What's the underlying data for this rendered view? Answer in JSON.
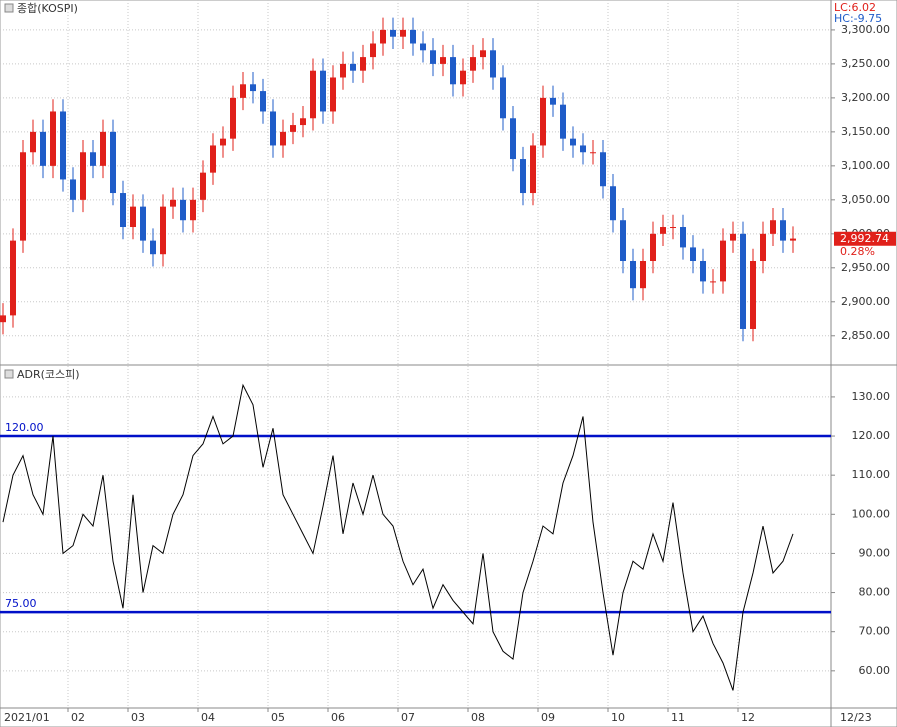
{
  "chart_data": [
    {
      "type": "candlestick",
      "title": "종합(KOSPI)",
      "lc_label": "LC:6.02",
      "hc_label": "HC:-9.75",
      "open": [
        2870,
        2880,
        2990,
        3120,
        3150,
        3100,
        3180,
        3080,
        3050,
        3120,
        3100,
        3150,
        3060,
        3010,
        3040,
        2990,
        2970,
        3040,
        3050,
        3020,
        3050,
        3090,
        3130,
        3140,
        3200,
        3220,
        3210,
        3180,
        3130,
        3150,
        3160,
        3170,
        3240,
        3180,
        3230,
        3250,
        3240,
        3260,
        3280,
        3300,
        3290,
        3300,
        3280,
        3270,
        3250,
        3260,
        3220,
        3240,
        3260,
        3270,
        3230,
        3170,
        3110,
        3060,
        3130,
        3200,
        3190,
        3140,
        3130,
        3120,
        3120,
        3070,
        3020,
        2960,
        2920,
        2960,
        3000,
        3010,
        3010,
        2980,
        2960,
        2930,
        2930,
        2990,
        3000,
        2860,
        2960,
        3000,
        3020,
        2990
      ],
      "high": [
        2898,
        3008,
        3138,
        3168,
        3168,
        3198,
        3198,
        3098,
        3138,
        3138,
        3168,
        3168,
        3078,
        3058,
        3058,
        3008,
        3058,
        3068,
        3068,
        3068,
        3108,
        3148,
        3158,
        3218,
        3238,
        3238,
        3228,
        3198,
        3168,
        3178,
        3188,
        3258,
        3258,
        3248,
        3268,
        3268,
        3278,
        3298,
        3318,
        3318,
        3318,
        3318,
        3298,
        3288,
        3278,
        3278,
        3258,
        3278,
        3288,
        3288,
        3248,
        3188,
        3128,
        3148,
        3218,
        3218,
        3208,
        3158,
        3148,
        3138,
        3138,
        3088,
        3038,
        2978,
        2978,
        3018,
        3028,
        3028,
        3028,
        2998,
        2978,
        2948,
        3008,
        3018,
        3018,
        2978,
        3018,
        3038,
        3038,
        3011
      ],
      "low": [
        2852,
        2862,
        2972,
        3102,
        3082,
        3082,
        3062,
        3032,
        3032,
        3082,
        3082,
        3042,
        2992,
        2992,
        2972,
        2952,
        2952,
        3022,
        3002,
        3002,
        3032,
        3072,
        3112,
        3122,
        3182,
        3192,
        3162,
        3112,
        3112,
        3132,
        3142,
        3152,
        3162,
        3162,
        3212,
        3222,
        3222,
        3242,
        3262,
        3272,
        3272,
        3262,
        3252,
        3232,
        3232,
        3202,
        3202,
        3222,
        3242,
        3212,
        3152,
        3092,
        3042,
        3042,
        3112,
        3172,
        3122,
        3112,
        3102,
        3102,
        3052,
        3002,
        2942,
        2902,
        2902,
        2942,
        2982,
        2992,
        2962,
        2942,
        2912,
        2912,
        2912,
        2972,
        2842,
        2842,
        2942,
        2982,
        2972,
        2972
      ],
      "close": [
        2880,
        2990,
        3120,
        3150,
        3100,
        3180,
        3080,
        3050,
        3120,
        3100,
        3150,
        3060,
        3010,
        3040,
        2990,
        2970,
        3040,
        3050,
        3020,
        3050,
        3090,
        3130,
        3140,
        3200,
        3220,
        3210,
        3180,
        3130,
        3150,
        3160,
        3170,
        3240,
        3180,
        3230,
        3250,
        3240,
        3260,
        3280,
        3300,
        3290,
        3300,
        3280,
        3270,
        3250,
        3260,
        3220,
        3240,
        3260,
        3270,
        3230,
        3170,
        3110,
        3060,
        3130,
        3200,
        3190,
        3140,
        3130,
        3120,
        3120,
        3070,
        3020,
        2960,
        2920,
        2960,
        3000,
        3010,
        3010,
        2980,
        2960,
        2930,
        2930,
        2990,
        3000,
        2860,
        2960,
        3000,
        3020,
        2990,
        2993
      ],
      "up_color": "#e0201a",
      "down_color": "#1f5cc8",
      "ylim": [
        2807,
        3344
      ],
      "yticks": [
        {
          "value": 2850,
          "label": "2,850.00"
        },
        {
          "value": 2900,
          "label": "2,900.00"
        },
        {
          "value": 2950,
          "label": "2,950.00"
        },
        {
          "value": 3000,
          "label": "3,000.00"
        },
        {
          "value": 3050,
          "label": "3,050.00"
        },
        {
          "value": 3100,
          "label": "3,100.00"
        },
        {
          "value": 3150,
          "label": "3,150.00"
        },
        {
          "value": 3200,
          "label": "3,200.00"
        },
        {
          "value": 3250,
          "label": "3,250.00"
        },
        {
          "value": 3300,
          "label": "3,300.00"
        }
      ],
      "last_price": {
        "value": 2992.74,
        "label": "2,992.74"
      },
      "change": "0.28%",
      "grid": true
    },
    {
      "type": "line",
      "title": "ADR(코스피)",
      "categories": [
        "2021/01",
        null,
        null,
        null,
        null,
        null,
        null,
        "02",
        null,
        null,
        null,
        null,
        null,
        "03",
        null,
        null,
        null,
        null,
        null,
        null,
        "04",
        null,
        null,
        null,
        null,
        null,
        null,
        "05",
        null,
        null,
        null,
        null,
        null,
        "06",
        null,
        null,
        null,
        null,
        null,
        null,
        "07",
        null,
        null,
        null,
        null,
        null,
        null,
        "08",
        null,
        null,
        null,
        null,
        null,
        null,
        "09",
        null,
        null,
        null,
        null,
        null,
        null,
        "10",
        null,
        null,
        null,
        null,
        null,
        "11",
        null,
        null,
        null,
        null,
        null,
        null,
        "12",
        null,
        null,
        null,
        null,
        null
      ],
      "values": [
        98,
        110,
        115,
        105,
        100,
        120,
        90,
        92,
        100,
        97,
        110,
        88,
        76,
        105,
        80,
        92,
        90,
        100,
        105,
        115,
        118,
        125,
        118,
        120,
        133,
        128,
        112,
        122,
        105,
        100,
        95,
        90,
        102,
        115,
        95,
        108,
        100,
        110,
        100,
        97,
        88,
        82,
        86,
        76,
        82,
        78,
        75,
        72,
        90,
        70,
        65,
        63,
        80,
        88,
        97,
        95,
        108,
        115,
        125,
        98,
        80,
        64,
        80,
        88,
        86,
        95,
        88,
        103,
        85,
        70,
        74,
        67,
        62,
        55,
        75,
        85,
        97,
        85,
        88,
        95
      ],
      "color": "#000000",
      "reference_lines": [
        {
          "value": 120,
          "label": "120.00"
        },
        {
          "value": 75,
          "label": "75.00"
        }
      ],
      "ref_color": "#0010c8",
      "ylim": [
        50.5,
        137.9
      ],
      "yticks": [
        {
          "value": 60,
          "label": "60.00"
        },
        {
          "value": 70,
          "label": "70.00"
        },
        {
          "value": 80,
          "label": "80.00"
        },
        {
          "value": 90,
          "label": "90.00"
        },
        {
          "value": 100,
          "label": "100.00"
        },
        {
          "value": 110,
          "label": "110.00"
        },
        {
          "value": 120,
          "label": "120.00"
        },
        {
          "value": 130,
          "label": "130.00"
        }
      ],
      "x_end_label": "12/23",
      "grid": true
    }
  ]
}
